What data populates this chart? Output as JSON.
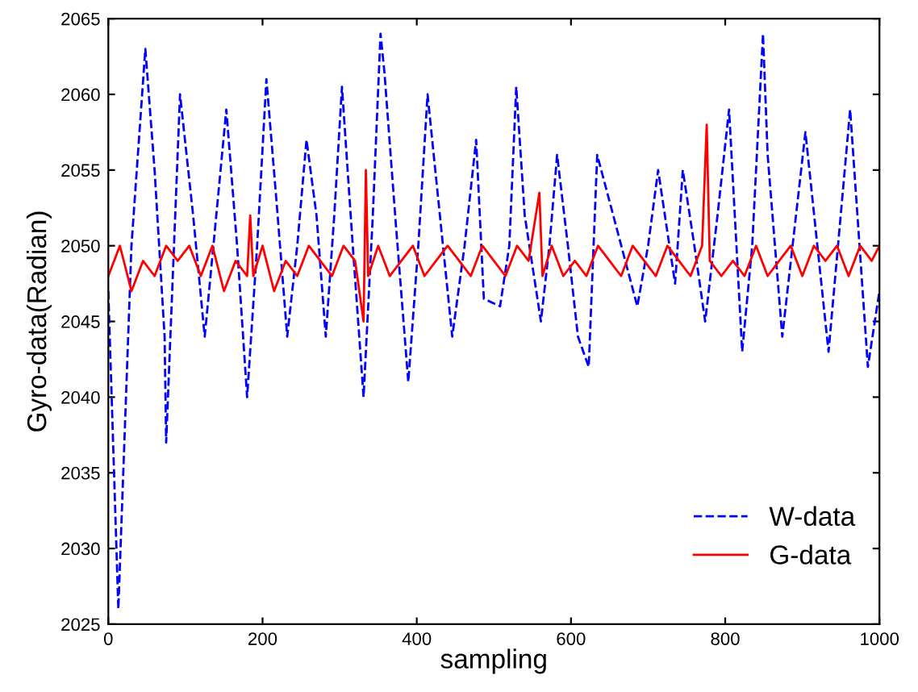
{
  "chart_data": {
    "type": "line",
    "xlabel": "sampling",
    "ylabel": "Gyro-data(Radian)",
    "xlim": [
      0,
      1000
    ],
    "xticks": [
      0,
      200,
      400,
      600,
      800,
      1000
    ],
    "ylim": [
      2025,
      2065
    ],
    "yticks": [
      2025,
      2030,
      2035,
      2040,
      2045,
      2050,
      2055,
      2060,
      2065
    ],
    "grid": false,
    "legend": "bottom right",
    "series": [
      {
        "name": "W-data",
        "color": "#0000ff",
        "line_style": "dashed",
        "x": [
          0,
          13,
          30,
          48,
          60,
          73,
          75,
          93,
          110,
          125,
          140,
          153,
          167,
          180,
          193,
          205,
          218,
          232,
          245,
          257,
          270,
          282,
          293,
          303,
          317,
          331,
          343,
          353,
          358,
          372,
          389,
          402,
          414,
          430,
          446,
          462,
          477,
          487,
          508,
          520,
          529,
          540,
          561,
          572,
          582,
          596,
          609,
          623,
          634,
          660,
          686,
          700,
          713,
          735,
          745,
          760,
          774,
          790,
          805,
          822,
          835,
          849,
          855,
          874,
          904,
          934,
          962,
          985,
          1000
        ],
        "values": [
          2047,
          2026,
          2050,
          2063,
          2055,
          2044,
          2037,
          2060,
          2052,
          2044,
          2052,
          2059,
          2050,
          2040,
          2050,
          2061,
          2053,
          2044,
          2050,
          2057,
          2052,
          2044,
          2052,
          2060.5,
          2050,
          2040,
          2052,
          2064,
          2061.5,
          2052,
          2041,
          2050,
          2060,
          2052,
          2044,
          2050,
          2057,
          2046.5,
          2046,
          2050,
          2060.5,
          2052,
          2045,
          2050,
          2056,
          2050,
          2044,
          2042,
          2056,
          2051,
          2046,
          2050,
          2055,
          2047.5,
          2055,
          2050,
          2045,
          2052,
          2059,
          2043,
          2050,
          2064,
          2056,
          2044,
          2057.5,
          2043,
          2059,
          2042,
          2047
        ]
      },
      {
        "name": "G-data",
        "color": "#ff0000",
        "line_style": "solid",
        "x": [
          0,
          15,
          30,
          45,
          60,
          75,
          90,
          105,
          120,
          135,
          150,
          165,
          180,
          184,
          188,
          200,
          215,
          230,
          245,
          260,
          275,
          290,
          305,
          320,
          331,
          334,
          337,
          350,
          365,
          380,
          395,
          410,
          425,
          440,
          455,
          470,
          485,
          500,
          515,
          530,
          545,
          559,
          563,
          575,
          590,
          605,
          620,
          635,
          650,
          665,
          680,
          695,
          710,
          725,
          740,
          755,
          770,
          776,
          780,
          795,
          810,
          825,
          840,
          855,
          870,
          885,
          900,
          915,
          930,
          945,
          960,
          975,
          990,
          1000
        ],
        "values": [
          2048,
          2050,
          2047,
          2049,
          2048,
          2050,
          2049,
          2050,
          2048,
          2050,
          2047,
          2049,
          2048,
          2052,
          2048,
          2050,
          2047,
          2049,
          2048,
          2050,
          2049,
          2048,
          2050,
          2049,
          2045,
          2055,
          2048,
          2050,
          2048,
          2049,
          2050,
          2048,
          2049,
          2050,
          2049,
          2048,
          2050,
          2049,
          2048,
          2050,
          2049,
          2053.5,
          2048,
          2050,
          2048,
          2049,
          2048,
          2050,
          2049,
          2048,
          2050,
          2049,
          2048,
          2050,
          2049,
          2048,
          2050,
          2058,
          2049,
          2048,
          2049,
          2048,
          2050,
          2048,
          2049,
          2050,
          2048,
          2050,
          2049,
          2050,
          2048,
          2050,
          2049,
          2050
        ]
      }
    ]
  }
}
